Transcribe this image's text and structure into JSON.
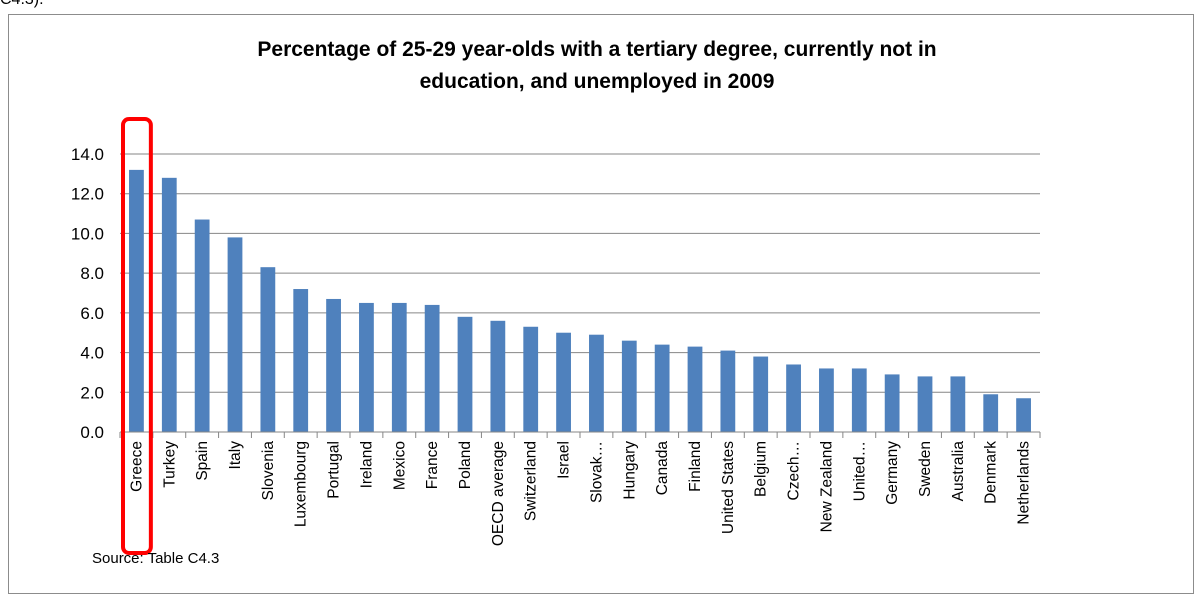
{
  "page": {
    "top_fragment": "C4.3)."
  },
  "chart_data": {
    "type": "bar",
    "title": "Percentage of  25-29 year-olds with a tertiary degree, currently not in education, and unemployed in 2009",
    "title_lines": [
      "Percentage of  25-29 year-olds with a tertiary degree, currently not in",
      "education, and unemployed in 2009"
    ],
    "categories": [
      "Greece",
      "Turkey",
      "Spain",
      "Italy",
      "Slovenia",
      "Luxembourg",
      "Portugal",
      "Ireland",
      "Mexico",
      "France",
      "Poland",
      "OECD average",
      "Switzerland",
      "Israel",
      "Slovak…",
      "Hungary",
      "Canada",
      "Finland",
      "United States",
      "Belgium",
      "Czech…",
      "New Zealand",
      "United…",
      "Germany",
      "Sweden",
      "Australia",
      "Denmark",
      "Netherlands"
    ],
    "values": [
      13.2,
      12.8,
      10.7,
      9.8,
      8.3,
      7.2,
      6.7,
      6.5,
      6.5,
      6.4,
      5.8,
      5.6,
      5.3,
      5.0,
      4.9,
      4.6,
      4.4,
      4.3,
      4.1,
      3.8,
      3.4,
      3.2,
      3.2,
      2.9,
      2.8,
      2.8,
      1.9,
      1.7
    ],
    "ylim": [
      0,
      14
    ],
    "yticks": [
      "0.0",
      "2.0",
      "4.0",
      "6.0",
      "8.0",
      "10.0",
      "12.0",
      "14.0"
    ],
    "grid": true,
    "legend": "none",
    "highlight": {
      "category": "Greece",
      "color": "#ff0000"
    },
    "bar_color": "#4f81bd",
    "xlabel": "",
    "ylabel": "",
    "source": "Source: Table C4.3"
  }
}
